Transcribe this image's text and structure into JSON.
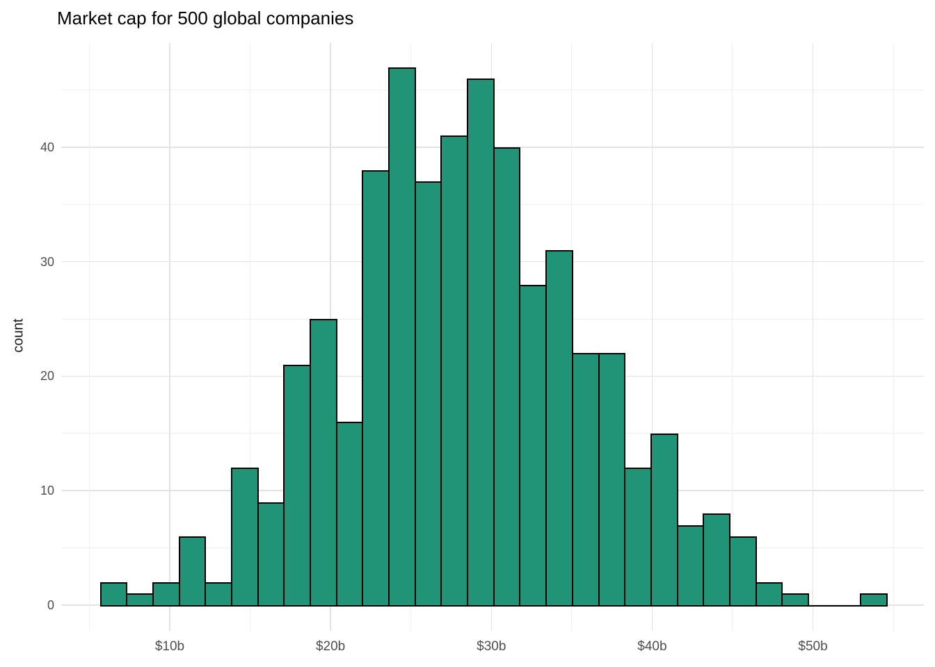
{
  "title": "Market cap for 500 global companies",
  "y_axis": {
    "label": "count",
    "major_ticks": [
      {
        "label": "0",
        "value": 0
      },
      {
        "label": "10",
        "value": 10
      },
      {
        "label": "20",
        "value": 20
      },
      {
        "label": "30",
        "value": 30
      },
      {
        "label": "40",
        "value": 40
      }
    ],
    "minor_tick_values": [
      5,
      15,
      25,
      35,
      45
    ],
    "range": [
      -2.25,
      49.1
    ]
  },
  "x_axis": {
    "label": "",
    "major_ticks": [
      {
        "label": "$10b",
        "value": 10
      },
      {
        "label": "$20b",
        "value": 20
      },
      {
        "label": "$30b",
        "value": 30
      },
      {
        "label": "$40b",
        "value": 40
      },
      {
        "label": "$50b",
        "value": 50
      }
    ],
    "minor_tick_values": [
      5,
      15,
      25,
      35,
      45,
      55
    ],
    "range": [
      3.25,
      56.9
    ]
  },
  "chart_data": {
    "type": "bar",
    "subtype": "histogram",
    "title": "Market cap for 500 global companies",
    "xlabel": "",
    "ylabel": "count",
    "x_unit": "$ billions",
    "bin_start": 5.66,
    "bin_width": 1.63,
    "counts": [
      2,
      1,
      2,
      6,
      2,
      12,
      9,
      21,
      25,
      16,
      38,
      47,
      37,
      41,
      46,
      40,
      28,
      31,
      22,
      22,
      12,
      15,
      7,
      8,
      6,
      2,
      1,
      0,
      0,
      1
    ],
    "total_count": 500,
    "xlim": [
      3.25,
      56.9
    ],
    "ylim": [
      -2.25,
      49.1
    ],
    "grid": true,
    "legend": false
  },
  "colors": {
    "bar_fill": "#219377",
    "bar_stroke": "#000000",
    "grid_major": "#e2e2e2",
    "grid_minor": "#efefef",
    "tick_label": "#4d4d4d",
    "axis_title": "#1a1a1a",
    "title": "#000000",
    "background": "#ffffff"
  }
}
